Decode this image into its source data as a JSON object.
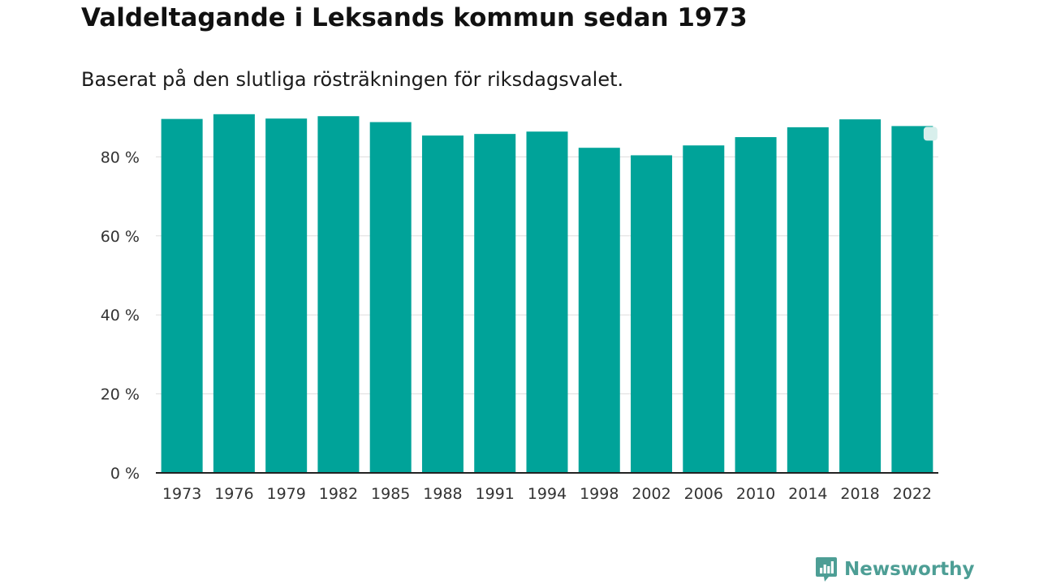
{
  "header": {
    "title": "Valdeltagande i Leksands kommun sedan 1973",
    "subtitle": "Baserat på den slutliga rösträkningen för riksdagsvalet."
  },
  "brand": {
    "name": "Newsworthy"
  },
  "colors": {
    "bar": "#00a399",
    "grid": "#dddddd",
    "axis": "#222222",
    "brand": "#4d9e95"
  },
  "chart_data": {
    "type": "bar",
    "title": "Valdeltagande i Leksands kommun sedan 1973",
    "subtitle": "Baserat på den slutliga rösträkningen för riksdagsvalet.",
    "xlabel": "",
    "ylabel": "",
    "categories": [
      "1973",
      "1976",
      "1979",
      "1982",
      "1985",
      "1988",
      "1991",
      "1994",
      "1998",
      "2002",
      "2006",
      "2010",
      "2014",
      "2018",
      "2022"
    ],
    "values": [
      89.6,
      90.8,
      89.7,
      90.3,
      88.8,
      85.4,
      85.8,
      86.4,
      82.3,
      80.4,
      82.9,
      85.0,
      87.5,
      89.5,
      87.8
    ],
    "ylim": [
      0,
      95
    ],
    "yticks": [
      0,
      20,
      40,
      60,
      80
    ],
    "ytick_labels": [
      "0 %",
      "20 %",
      "40 %",
      "60 %",
      "80 %"
    ],
    "grid": true,
    "legend": "none"
  }
}
